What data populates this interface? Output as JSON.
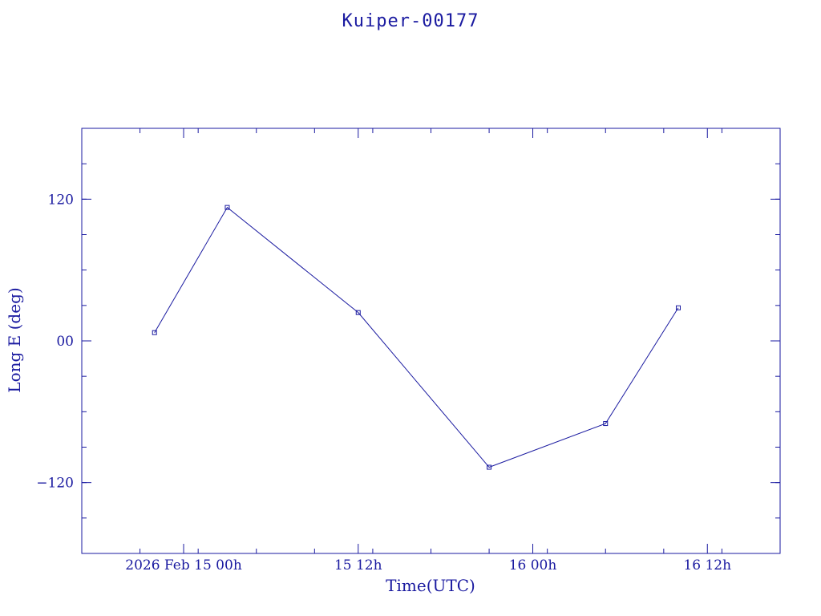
{
  "chart_data": {
    "type": "line",
    "title": "Kuiper-00177",
    "xlabel": "Time(UTC)",
    "ylabel": "Long E (deg)",
    "x": [
      "2026-02-14T22:00",
      "2026-02-15T03:00",
      "2026-02-15T12:00",
      "2026-02-15T21:00",
      "2026-02-16T05:00",
      "2026-02-16T10:00"
    ],
    "xlim": [
      "2026-02-14T17:00",
      "2026-02-16T17:00"
    ],
    "xticks": [
      {
        "t": "2026-02-15T00:00",
        "label": "2026 Feb 15  00h"
      },
      {
        "t": "2026-02-15T12:00",
        "label": "15  12h"
      },
      {
        "t": "2026-02-16T00:00",
        "label": "16  00h"
      },
      {
        "t": "2026-02-16T12:00",
        "label": "16  12h"
      }
    ],
    "series": [
      {
        "values": [
          7,
          113,
          24,
          -107,
          -70,
          28
        ]
      }
    ],
    "ylim": [
      -180,
      180
    ],
    "yticks": [
      {
        "v": 120,
        "label": "120"
      },
      {
        "v": 0,
        "label": "00"
      },
      {
        "v": -120,
        "label": "−120"
      }
    ],
    "grid": false,
    "color": "#1a1aa0"
  }
}
